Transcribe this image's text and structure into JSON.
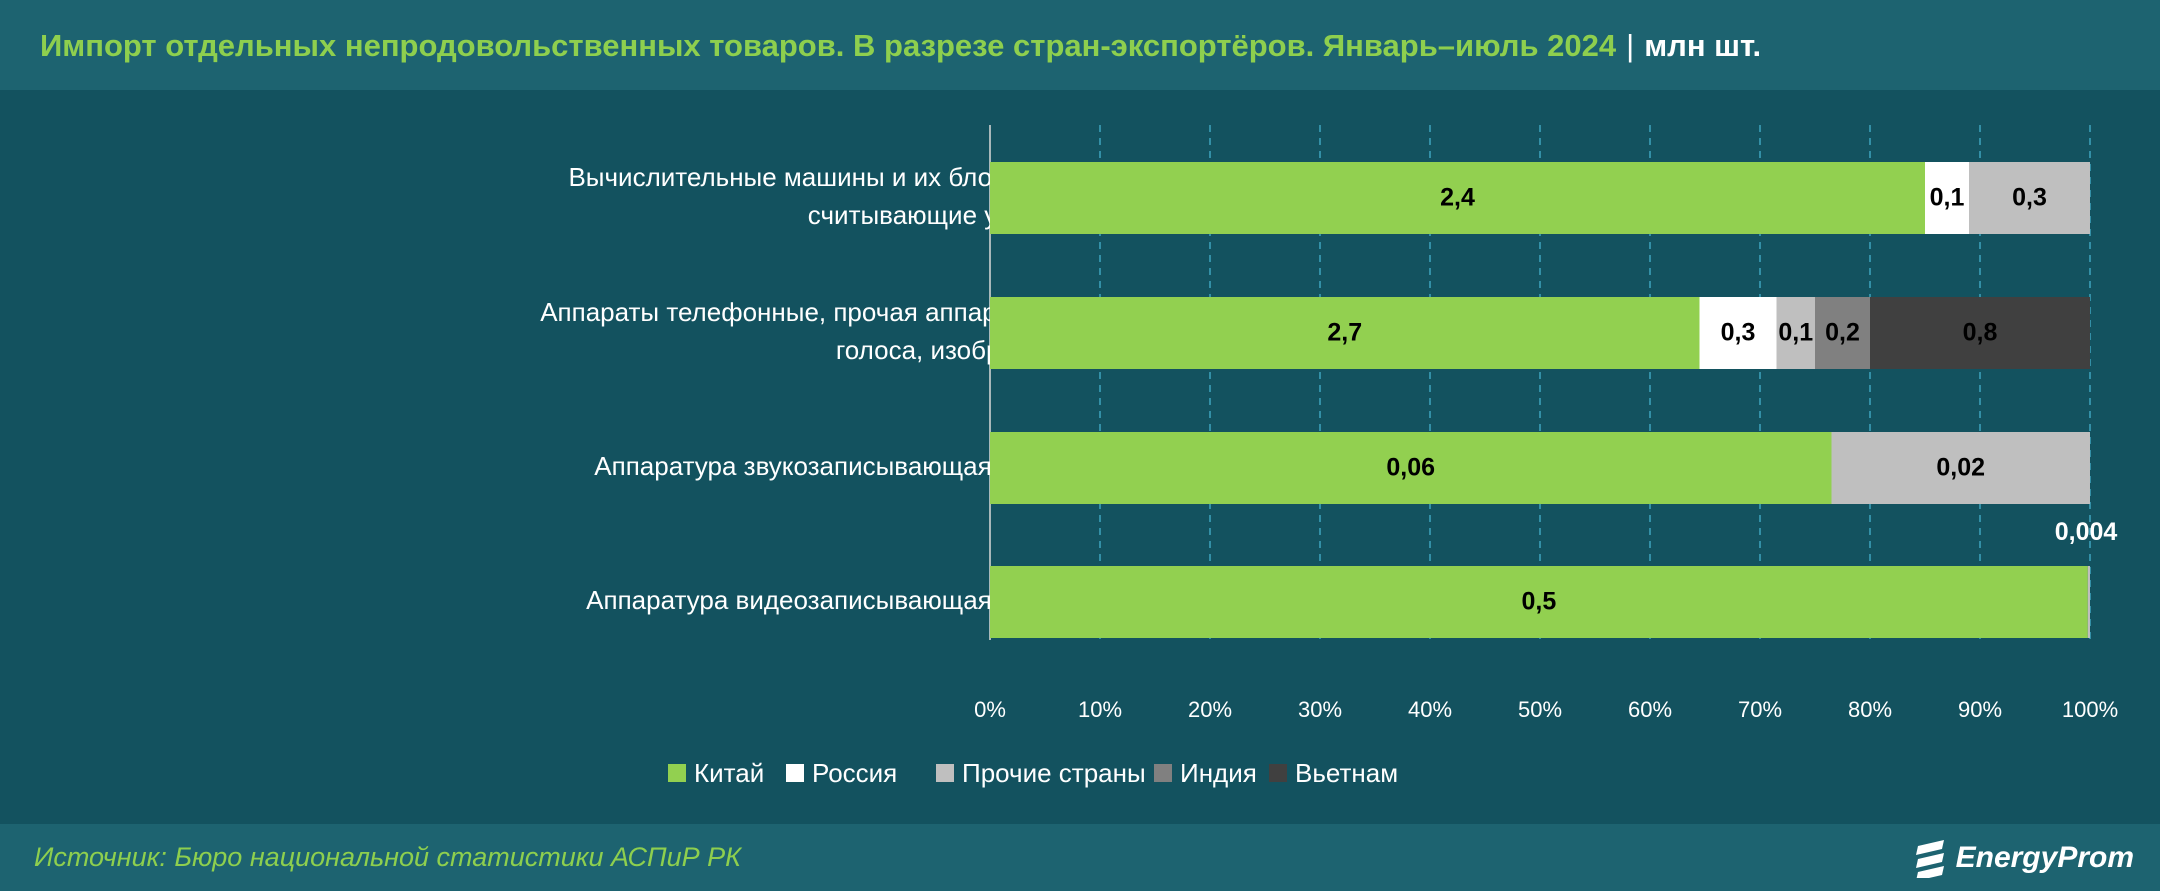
{
  "header": {
    "title": "Импорт отдельных непродовольственных товаров. В разрезе стран-экспортёров. Январь–июль 2024",
    "separator": "|",
    "unit": "млн шт."
  },
  "footer": {
    "source": "Источник: Бюро национальной статистики АСПиР РК",
    "brand": "EnergyProm"
  },
  "colors": {
    "China": "#92d050",
    "Russia": "#ffffff",
    "Other": "#bfbfbf",
    "India": "#808080",
    "Vietnam": "#404040"
  },
  "chart_data": {
    "type": "bar",
    "orientation": "horizontal",
    "stacked": "percent",
    "xlim": [
      0,
      100
    ],
    "x_ticks": [
      "0%",
      "10%",
      "20%",
      "30%",
      "40%",
      "50%",
      "60%",
      "70%",
      "80%",
      "90%",
      "100%"
    ],
    "grid": "vertical dashed",
    "legend_position": "bottom",
    "categories": [
      "Вычислительные машины и их блоки, магнитные или оптические считывающие устройства",
      "Аппараты телефонные, прочая аппаратура для передачи или приёма голоса, изображений",
      "Аппаратура звукозаписывающая или звуковоспроизводящая",
      "Аппаратура видеозаписывающая или видеовоспроизводящая"
    ],
    "series": [
      {
        "name": "Китай",
        "key": "China",
        "values": [
          2.4,
          2.7,
          0.06,
          0.5
        ],
        "labels": [
          "2,4",
          "2,7",
          "0,06",
          "0,5"
        ],
        "shares": [
          85,
          64.5,
          76.5,
          99.8
        ]
      },
      {
        "name": "Россия",
        "key": "Russia",
        "values": [
          0.1,
          0.3,
          null,
          null
        ],
        "labels": [
          "0,1",
          "0,3",
          "",
          ""
        ],
        "shares": [
          4,
          7,
          0,
          0
        ]
      },
      {
        "name": "Прочие страны",
        "key": "Other",
        "values": [
          0.3,
          0.1,
          0.02,
          0.004
        ],
        "labels": [
          "0,3",
          "0,1",
          "0,02",
          "0,004"
        ],
        "shares": [
          11,
          3.5,
          23.5,
          0.2
        ]
      },
      {
        "name": "Индия",
        "key": "India",
        "values": [
          null,
          0.2,
          null,
          null
        ],
        "labels": [
          "",
          "0,2",
          "",
          ""
        ],
        "shares": [
          0,
          5,
          0,
          0
        ]
      },
      {
        "name": "Вьетнам",
        "key": "Vietnam",
        "values": [
          null,
          0.8,
          null,
          null
        ],
        "labels": [
          "",
          "0,8",
          "",
          ""
        ],
        "shares": [
          0,
          20,
          0,
          0
        ]
      }
    ]
  }
}
